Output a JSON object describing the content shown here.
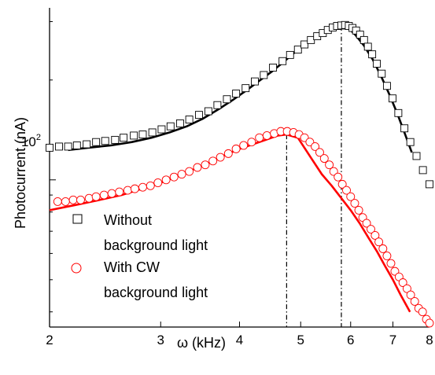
{
  "chart_data": {
    "type": "line",
    "title": "",
    "xlabel": "ω (kHz)",
    "ylabel": "Photocurrent (nA)",
    "x_scale": "log",
    "y_scale": "log",
    "xlim": [
      2,
      8
    ],
    "ylim": [
      36,
      330
    ],
    "x_ticks": [
      2,
      3,
      4,
      5,
      6,
      7,
      8
    ],
    "x_tick_labels": [
      "2",
      "3",
      "4",
      "5",
      "6",
      "7",
      "8"
    ],
    "y_ticks": [
      100
    ],
    "y_tick_label_base": "10",
    "y_tick_label_exp": "2",
    "grid": false,
    "legend_position": "lower-left",
    "colors": {
      "series1": "#000000",
      "series2": "#ff0000"
    },
    "series": [
      {
        "legend_line1": "Without",
        "legend_line2": "background light",
        "marker": "square",
        "color": "#000000",
        "markers": {
          "x": [
            2.0,
            2.07,
            2.14,
            2.21,
            2.29,
            2.37,
            2.45,
            2.54,
            2.62,
            2.72,
            2.81,
            2.91,
            3.01,
            3.11,
            3.22,
            3.33,
            3.45,
            3.57,
            3.69,
            3.82,
            3.95,
            4.09,
            4.23,
            4.37,
            4.52,
            4.68,
            4.81,
            4.95,
            5.07,
            5.19,
            5.31,
            5.42,
            5.52,
            5.62,
            5.71,
            5.8,
            5.88,
            5.96,
            6.04,
            6.12,
            6.21,
            6.3,
            6.39,
            6.49,
            6.6,
            6.72,
            6.85,
            6.99,
            7.14,
            7.3,
            7.46,
            7.63,
            7.81,
            8.0
          ],
          "y": [
            125,
            126,
            126,
            127,
            128,
            130,
            131,
            132,
            134,
            136,
            137,
            139,
            142,
            145,
            148,
            152,
            157,
            161,
            168,
            175,
            182,
            189,
            198,
            207,
            218,
            228,
            238,
            247,
            256,
            264,
            271,
            277,
            283,
            288,
            291,
            292,
            293,
            291,
            287,
            282,
            274,
            264,
            252,
            239,
            224,
            209,
            192,
            176,
            159,
            143,
            130,
            118,
            107,
            97
          ]
        },
        "fit": {
          "x": [
            2.14,
            2.3,
            2.5,
            2.7,
            2.9,
            3.1,
            3.3,
            3.5,
            3.7,
            3.9,
            4.1,
            4.3,
            4.5,
            4.7,
            4.9,
            5.1,
            5.3,
            5.5,
            5.65,
            5.8,
            5.95,
            6.1,
            6.3,
            6.5,
            6.7,
            6.9,
            7.1,
            7.3,
            7.5
          ],
          "y": [
            123,
            125,
            127,
            130,
            134,
            139,
            145,
            153,
            163,
            174,
            186,
            199,
            212,
            227,
            243,
            259,
            272,
            283,
            290,
            291,
            287,
            274,
            254,
            231,
            206,
            182,
            160,
            139,
            121
          ]
        }
      },
      {
        "legend_line1": "With CW",
        "legend_line2": "background light",
        "marker": "circle",
        "color": "#ff0000",
        "markers": {
          "x": [
            2.06,
            2.12,
            2.18,
            2.24,
            2.31,
            2.37,
            2.44,
            2.51,
            2.58,
            2.66,
            2.73,
            2.81,
            2.89,
            2.97,
            3.06,
            3.15,
            3.24,
            3.33,
            3.43,
            3.53,
            3.63,
            3.73,
            3.84,
            3.95,
            4.06,
            4.18,
            4.3,
            4.42,
            4.54,
            4.65,
            4.76,
            4.87,
            4.97,
            5.07,
            5.17,
            5.27,
            5.36,
            5.45,
            5.55,
            5.64,
            5.73,
            5.82,
            5.91,
            6.0,
            6.09,
            6.18,
            6.27,
            6.36,
            6.46,
            6.56,
            6.65,
            6.75,
            6.85,
            6.95,
            7.05,
            7.16,
            7.26,
            7.37,
            7.47,
            7.58,
            7.69,
            7.8,
            7.91,
            8.0
          ],
          "y": [
            86,
            86,
            87,
            87,
            88,
            89,
            90,
            91,
            92,
            93,
            94,
            95,
            96,
            98,
            100,
            102,
            104,
            106,
            109,
            111,
            114,
            117,
            120,
            124,
            127,
            130,
            134,
            136,
            138,
            140,
            140,
            139,
            137,
            134,
            130,
            126,
            121,
            116,
            111,
            106,
            102,
            97,
            93,
            89,
            85,
            81,
            77,
            74,
            71,
            68,
            65,
            62,
            59,
            56,
            53,
            51,
            49,
            47,
            45,
            43,
            41,
            40,
            38,
            37
          ]
        },
        "fit": {
          "x": [
            2.0,
            2.2,
            2.4,
            2.6,
            2.8,
            3.0,
            3.2,
            3.4,
            3.6,
            3.8,
            4.0,
            4.2,
            4.4,
            4.6,
            4.75,
            4.95,
            5.2,
            5.4,
            5.6,
            5.8,
            6.0,
            6.2,
            6.4,
            6.6,
            6.8,
            7.0,
            7.2,
            7.45
          ],
          "y": [
            81,
            84,
            87,
            90,
            94,
            98,
            103,
            108,
            113,
            119,
            124,
            128,
            132,
            136,
            137,
            134,
            116,
            104,
            96,
            88,
            81,
            74,
            67,
            61,
            55,
            50,
            45,
            40
          ]
        }
      }
    ],
    "vertical_lines": [
      {
        "x": 4.75,
        "y_top": 137,
        "style": "dash-dot"
      },
      {
        "x": 5.8,
        "y_top": 291,
        "style": "dash-dot"
      }
    ]
  }
}
